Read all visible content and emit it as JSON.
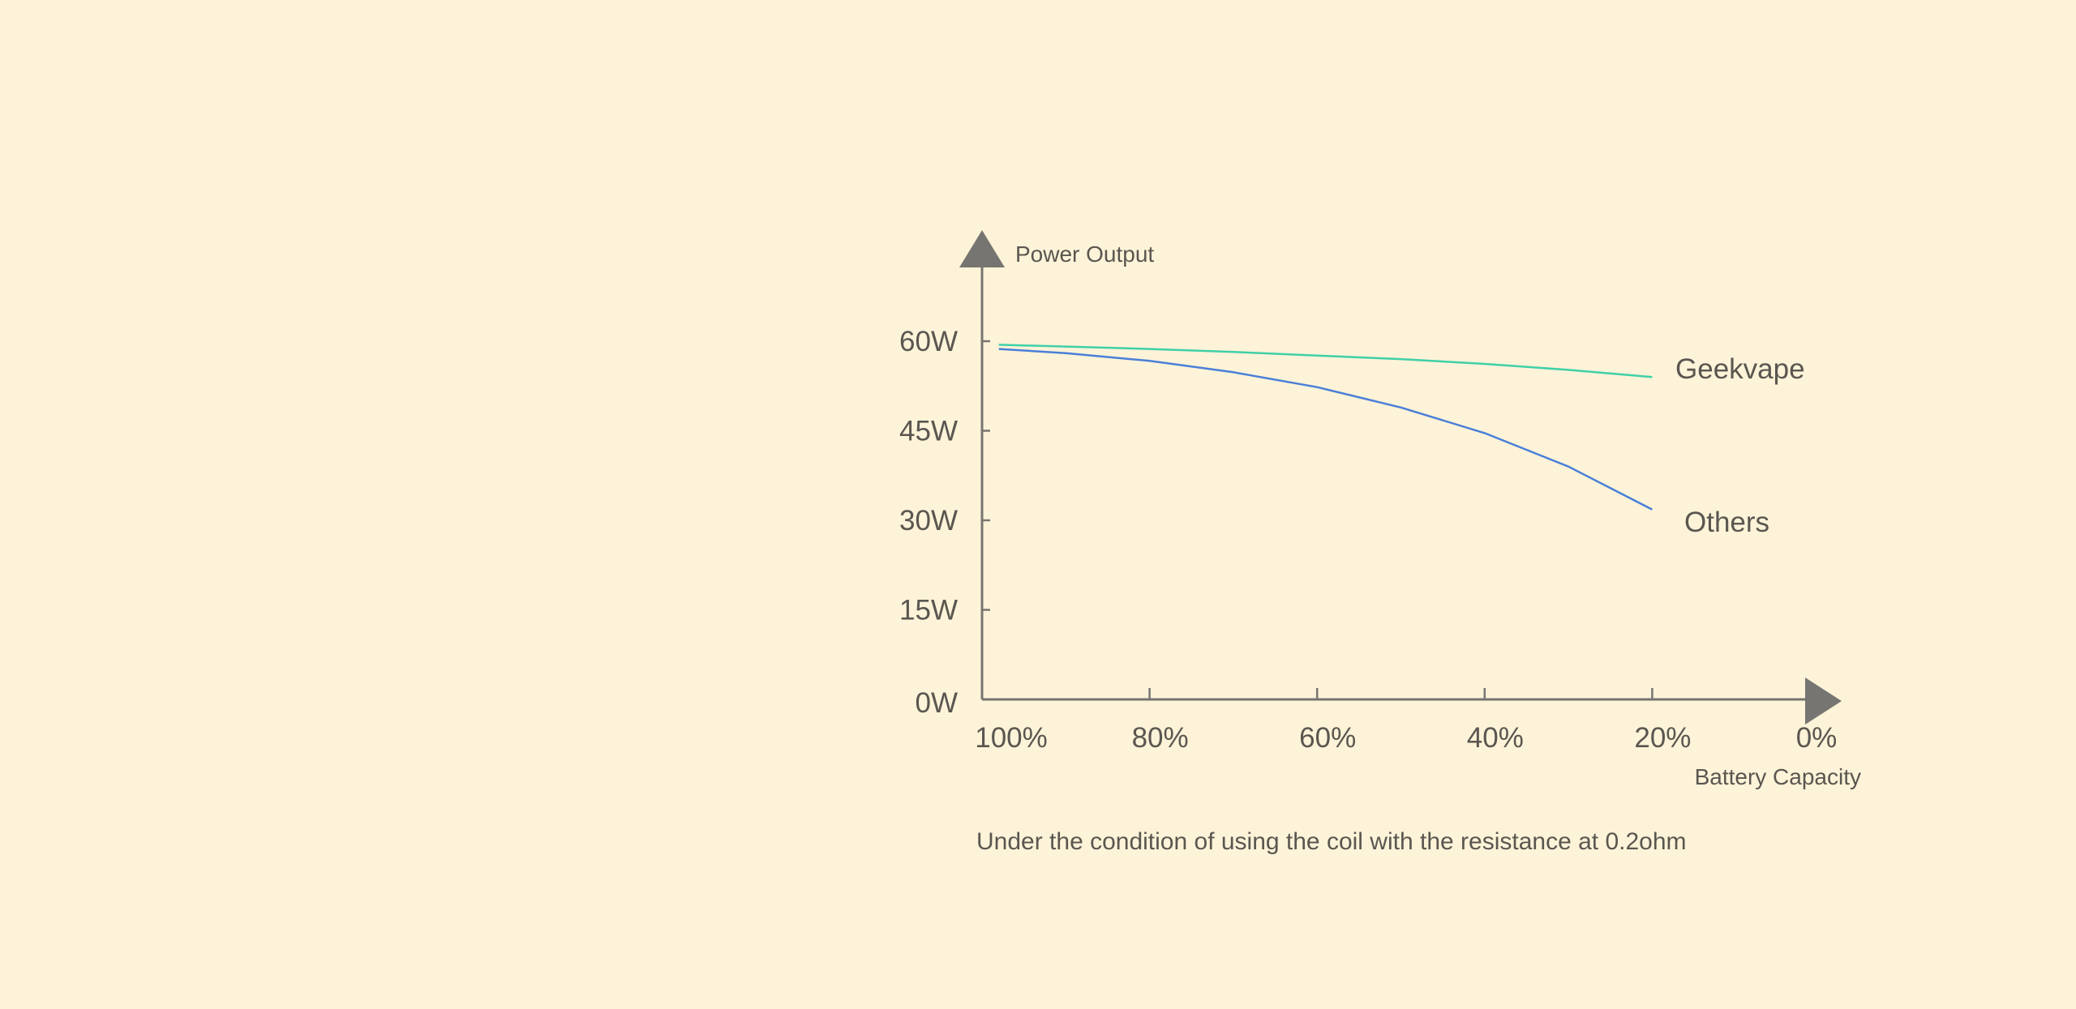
{
  "chart_data": {
    "type": "line",
    "ylabel": "Power Output",
    "xlabel": "Battery Capacity",
    "x_ticks": [
      "100%",
      "80%",
      "60%",
      "40%",
      "20%",
      "0%"
    ],
    "y_ticks": [
      "0W",
      "15W",
      "30W",
      "45W",
      "60W"
    ],
    "xlim": [
      100,
      0
    ],
    "ylim": [
      0,
      60
    ],
    "grid": false,
    "series": [
      {
        "name": "Geekvape",
        "color": "#3fd0a8",
        "x": [
          98,
          90,
          80,
          70,
          60,
          50,
          40,
          30,
          20
        ],
        "y": [
          59.4,
          59.1,
          58.7,
          58.2,
          57.6,
          57.0,
          56.2,
          55.2,
          54.0
        ]
      },
      {
        "name": "Others",
        "color": "#4a7fd8",
        "x": [
          98,
          90,
          80,
          70,
          60,
          50,
          40,
          30,
          20
        ],
        "y": [
          58.7,
          58.0,
          56.7,
          54.8,
          52.3,
          48.9,
          44.6,
          39.0,
          31.8
        ]
      }
    ],
    "axis_color": "#777571",
    "note": "Under the condition of using the coil with the resistance at 0.2ohm"
  }
}
